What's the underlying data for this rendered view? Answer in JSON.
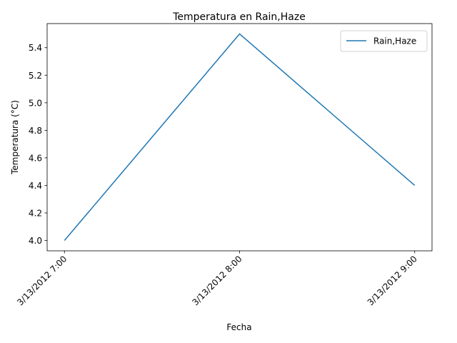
{
  "chart_data": {
    "type": "line",
    "title": "Temperatura en Rain,Haze",
    "xlabel": "Fecha",
    "ylabel": "Temperatura (°C)",
    "categories": [
      "3/13/2012 7:00",
      "3/13/2012 8:00",
      "3/13/2012 9:00"
    ],
    "series": [
      {
        "name": "Rain,Haze",
        "values": [
          4.0,
          5.5,
          4.4
        ],
        "color": "#1f77b4"
      }
    ],
    "ylim": [
      3.925,
      5.575
    ],
    "yticks": [
      "4.0",
      "4.2",
      "4.4",
      "4.6",
      "4.8",
      "5.0",
      "5.2",
      "5.4"
    ],
    "grid": false,
    "legend": "top-right"
  }
}
